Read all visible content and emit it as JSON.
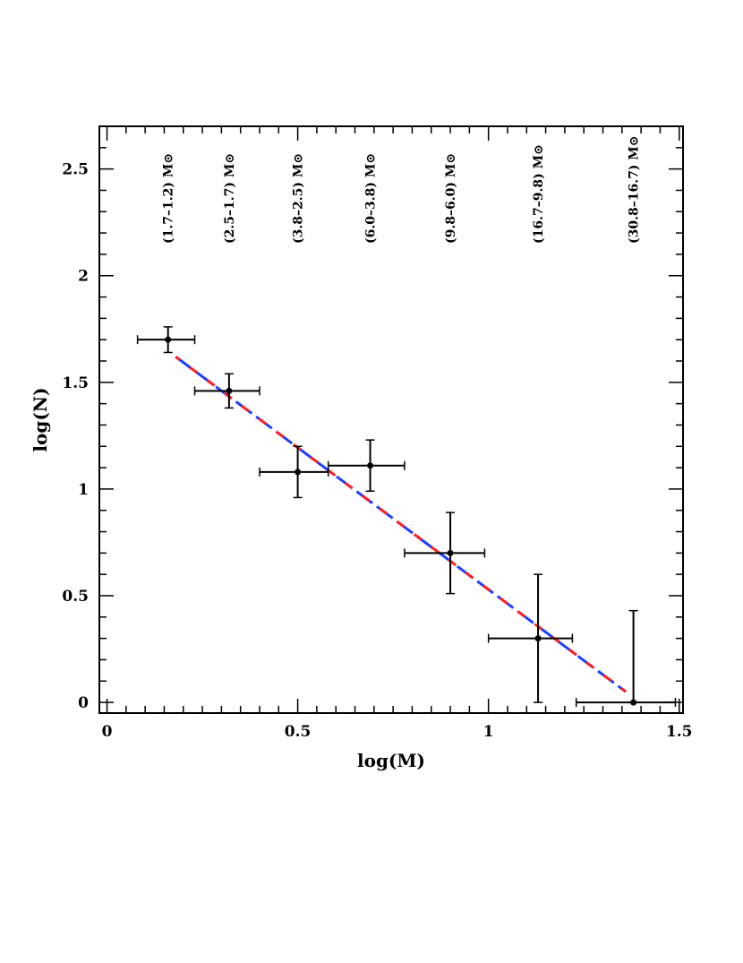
{
  "chart_data": {
    "type": "scatter",
    "title": "",
    "xlabel": "log(M)",
    "ylabel": "log(N)",
    "xlim": [
      -0.02,
      1.51
    ],
    "ylim": [
      -0.05,
      2.7
    ],
    "x_ticks": [
      0,
      0.5,
      1,
      1.5
    ],
    "x_tick_labels": [
      "0",
      "0.5",
      "1",
      "1.5"
    ],
    "y_ticks": [
      0,
      0.5,
      1,
      1.5,
      2,
      2.5
    ],
    "y_tick_labels": [
      "0",
      "0.5",
      "1",
      "1.5",
      "2",
      "2.5"
    ],
    "grid": false,
    "points": [
      {
        "x": 0.16,
        "y": 1.7,
        "xerr": [
          0.08,
          0.07
        ],
        "yerr": [
          0.06,
          0.06
        ],
        "bin_label": "(1.7–1.2) M⊙"
      },
      {
        "x": 0.32,
        "y": 1.46,
        "xerr": [
          0.09,
          0.08
        ],
        "yerr": [
          0.08,
          0.08
        ],
        "bin_label": "(2.5–1.7) M⊙"
      },
      {
        "x": 0.5,
        "y": 1.08,
        "xerr": [
          0.1,
          0.08
        ],
        "yerr": [
          0.12,
          0.12
        ],
        "bin_label": "(3.8–2.5) M⊙"
      },
      {
        "x": 0.69,
        "y": 1.11,
        "xerr": [
          0.11,
          0.09
        ],
        "yerr": [
          0.12,
          0.12
        ],
        "bin_label": "(6.0–3.8) M⊙"
      },
      {
        "x": 0.9,
        "y": 0.7,
        "xerr": [
          0.12,
          0.09
        ],
        "yerr": [
          0.19,
          0.19
        ],
        "bin_label": "(9.8–6.0) M⊙"
      },
      {
        "x": 1.13,
        "y": 0.3,
        "xerr": [
          0.13,
          0.09
        ],
        "yerr": [
          0.3,
          0.3
        ],
        "bin_label": "(16.7–9.8) M⊙"
      },
      {
        "x": 1.38,
        "y": 0.0,
        "xerr": [
          0.15,
          0.11
        ],
        "yerr": [
          0.0,
          0.43
        ],
        "bin_label": "(30.8–16.7) M⊙"
      }
    ],
    "fit_lines": [
      {
        "x": [
          0.18,
          1.36
        ],
        "y": [
          1.62,
          0.05
        ],
        "color": "#1f3fff",
        "style": "dashed"
      },
      {
        "x": [
          0.18,
          1.36
        ],
        "y": [
          1.62,
          0.05
        ],
        "color": "#ff2020",
        "style": "dashed"
      }
    ],
    "colors": {
      "points": "#000000",
      "axes": "#000000"
    }
  }
}
